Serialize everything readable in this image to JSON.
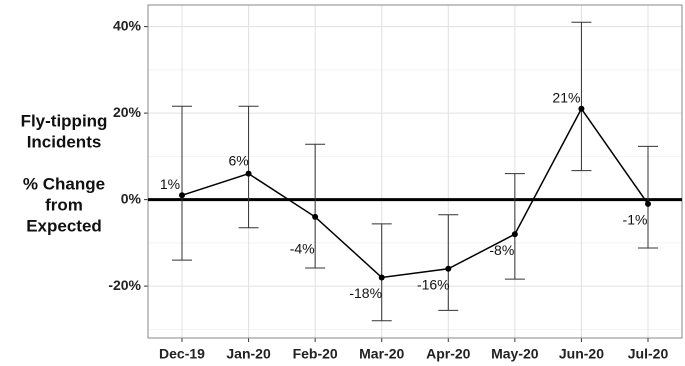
{
  "chart_data": {
    "type": "line",
    "y_label_lines": [
      "Fly-tipping",
      "Incidents",
      "% Change",
      "from",
      "Expected"
    ],
    "categories": [
      "Dec-19",
      "Jan-20",
      "Feb-20",
      "Mar-20",
      "Apr-20",
      "May-20",
      "Jun-20",
      "Jul-20"
    ],
    "series": [
      {
        "color": "#000000",
        "values": [
          1,
          6,
          -4,
          -18,
          -16,
          -8,
          21,
          -1
        ],
        "value_labels": [
          "1%",
          "6%",
          "-4%",
          "-18%",
          "-16%",
          "-8%",
          "21%",
          "-1%"
        ],
        "lower": [
          -14,
          -6.5,
          -15.8,
          -28,
          -25.6,
          -18.4,
          6.7,
          -11.2
        ],
        "upper": [
          21.6,
          21.6,
          12.8,
          -5.6,
          -3.5,
          6,
          41,
          12.3
        ]
      }
    ],
    "ylim": [
      -32,
      45
    ],
    "yticks": [
      {
        "value": -20,
        "label": "-20%"
      },
      {
        "value": 0,
        "label": "0%"
      },
      {
        "value": 20,
        "label": "20%"
      },
      {
        "value": 40,
        "label": "40%"
      }
    ],
    "minor_yticks": [
      -30,
      -10,
      10,
      30
    ],
    "reference_line": 0,
    "grid": true
  }
}
